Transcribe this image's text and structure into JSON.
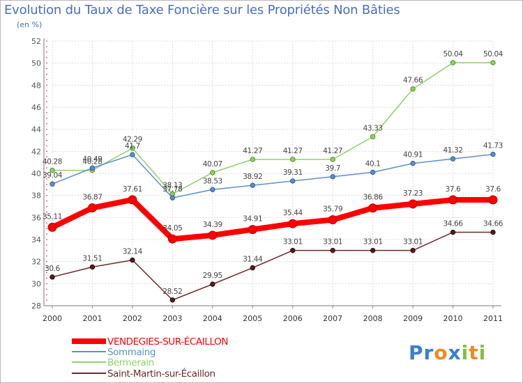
{
  "title": "Evolution du Taux de Taxe Foncière sur les Propriétés Non Bâties",
  "unit_label": "(en %)",
  "logo": {
    "text": "Proxiti",
    "letters": [
      {
        "ch": "P",
        "color": "#3a7fd0"
      },
      {
        "ch": "r",
        "color": "#3a7fd0"
      },
      {
        "ch": "o",
        "color": "#f08a1c"
      },
      {
        "ch": "x",
        "color": "#3a7fd0"
      },
      {
        "ch": "i",
        "color": "#7cc240"
      },
      {
        "ch": "t",
        "color": "#f08a1c"
      },
      {
        "ch": "i",
        "color": "#7cc240"
      }
    ]
  },
  "chart_data": {
    "type": "line",
    "title": "Evolution du Taux de Taxe Foncière sur les Propriétés Non Bâties",
    "ylabel": "(en %)",
    "xlabel": "",
    "x": [
      "2000",
      "2001",
      "2002",
      "2003",
      "2004",
      "2005",
      "2006",
      "2007",
      "2008",
      "2009",
      "2010",
      "2011"
    ],
    "ylim": [
      28,
      52
    ],
    "yticks": [
      28,
      30,
      32,
      34,
      36,
      38,
      40,
      42,
      44,
      46,
      48,
      50,
      52
    ],
    "grid": true,
    "legend_position": "bottom-left",
    "series": [
      {
        "name": "VENDEGIES-SUR-ÉCAILLON",
        "color": "#ff0000",
        "values": [
          35.11,
          36.87,
          37.61,
          34.05,
          34.39,
          34.91,
          35.44,
          35.79,
          36.86,
          37.23,
          37.6,
          37.6
        ]
      },
      {
        "name": "Sommaing",
        "color": "#5b8fc9",
        "values": [
          39.04,
          40.49,
          41.7,
          37.78,
          38.53,
          38.92,
          39.31,
          39.7,
          40.1,
          40.91,
          41.32,
          41.73
        ]
      },
      {
        "name": "Bermerain",
        "color": "#90d066",
        "values": [
          40.28,
          40.28,
          42.29,
          38.13,
          40.07,
          41.27,
          41.27,
          41.27,
          43.33,
          47.66,
          50.04,
          50.04
        ]
      },
      {
        "name": "Saint-Martin-sur-Écaillon",
        "color": "#6b2a2a",
        "values": [
          30.6,
          31.51,
          32.14,
          28.52,
          29.95,
          31.44,
          33.01,
          33.01,
          33.01,
          33.01,
          34.66,
          34.66
        ]
      }
    ],
    "data_labels": [
      [
        "35.11",
        "36.87",
        "37.61",
        "34.05",
        "34.39",
        "34.91",
        "35.44",
        "35.79",
        "36.86",
        "37.23",
        "37.6",
        "37.6"
      ],
      [
        "39.04",
        "40.49",
        "41.7",
        "37.78",
        "38.53",
        "38.92",
        "39.31",
        "39.7",
        "40.1",
        "40.91",
        "41.32",
        "41.73"
      ],
      [
        "40.28",
        "40.28",
        "42.29",
        "38.13",
        "40.07",
        "41.27",
        "41.27",
        "41.27",
        "43.33",
        "47.66",
        "50.04",
        "50.04"
      ],
      [
        "30.6",
        "31.51",
        "32.14",
        "28.52",
        "29.95",
        "31.44",
        "33.01",
        "33.01",
        "33.01",
        "33.01",
        "34.66",
        "34.66"
      ]
    ]
  }
}
